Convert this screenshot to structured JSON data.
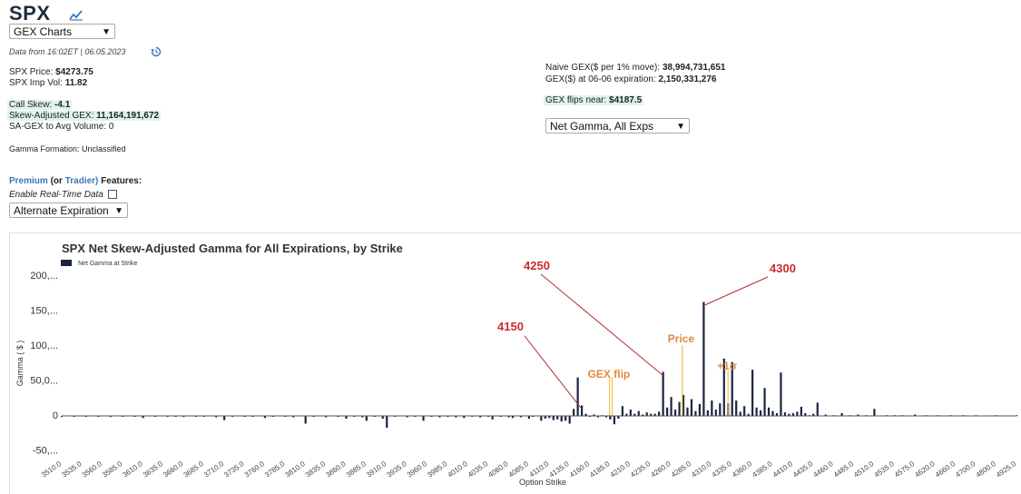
{
  "header": {
    "ticker": "SPX",
    "chart_selector": "GEX Charts",
    "data_from": "Data from 16:02ET | 06.05.2023"
  },
  "stats_left": {
    "price_label": "SPX Price:",
    "price_value": "$4273.75",
    "impvol_label": "SPX Imp Vol:",
    "impvol_value": "11.82",
    "callskew_label": "Call Skew:",
    "callskew_value": "-4.1",
    "sagex_label": "Skew-Adjusted GEX:",
    "sagex_value": "11,164,191,672",
    "sagex_avg_label": "SA-GEX to Avg Volume:",
    "sagex_avg_value": "0",
    "formation_label": "Gamma Formation:",
    "formation_value": "Unclassified"
  },
  "stats_right": {
    "naive_label": "Naive GEX($ per 1% move):",
    "naive_value": "38,994,731,651",
    "gex_exp_label": "GEX($) at 06-06 expiration:",
    "gex_exp_value": "2,150,331,276",
    "flips_label": "GEX flips near:",
    "flips_value": "$4187.5",
    "gamma_selector": "Net Gamma, All Exps"
  },
  "premium": {
    "premium_word": "Premium",
    "or_word": "(or",
    "trader_word": "Tradier)",
    "features_word": "Features:",
    "realtime_label": "Enable Real-Time Data",
    "alt_exp_selector": "Alternate Expiration"
  },
  "chart_data": {
    "type": "bar",
    "title": "SPX Net Skew-Adjusted Gamma for All Expirations, by Strike",
    "legend": "Net Gamma at Strike",
    "xlabel": "Option Strike",
    "ylabel": "Gamma ( $ )",
    "ylim": [
      -50,
      200
    ],
    "ytick_labels": [
      "200,...",
      "150,...",
      "100,...",
      "50,0...",
      "0",
      "-50,..."
    ],
    "ytick_values": [
      200,
      150,
      100,
      50,
      0,
      -50
    ],
    "xtick_labels": [
      "3510.0",
      "3535.0",
      "3560.0",
      "3585.0",
      "3610.0",
      "3635.0",
      "3660.0",
      "3685.0",
      "3710.0",
      "3735.0",
      "3760.0",
      "3785.0",
      "3810.0",
      "3835.0",
      "3860.0",
      "3885.0",
      "3910.0",
      "3935.0",
      "3960.0",
      "3985.0",
      "4010.0",
      "4035.0",
      "4060.0",
      "4085.0",
      "4110.0",
      "4135.0",
      "4160.0",
      "4185.0",
      "4210.0",
      "4235.0",
      "4260.0",
      "4285.0",
      "4310.0",
      "4335.0",
      "4360.0",
      "4385.0",
      "4410.0",
      "4435.0",
      "4460.0",
      "4485.0",
      "4510.0",
      "4535.0",
      "4575.0",
      "4620.0",
      "4660.0",
      "4700.0",
      "4800.0",
      "4925.0"
    ],
    "bar_color": "#1b2440",
    "bars": [
      [
        3510,
        -1
      ],
      [
        3525,
        -0.5
      ],
      [
        3540,
        -1
      ],
      [
        3555,
        -0.5
      ],
      [
        3570,
        -1.5
      ],
      [
        3585,
        -0.5
      ],
      [
        3600,
        -1
      ],
      [
        3610,
        -3
      ],
      [
        3625,
        -0.5
      ],
      [
        3640,
        -1
      ],
      [
        3650,
        -1
      ],
      [
        3660,
        -1.5
      ],
      [
        3675,
        -0.5
      ],
      [
        3685,
        -1
      ],
      [
        3700,
        -2
      ],
      [
        3710,
        -6
      ],
      [
        3720,
        -1
      ],
      [
        3735,
        -1
      ],
      [
        3745,
        -0.5
      ],
      [
        3760,
        -3
      ],
      [
        3770,
        -1
      ],
      [
        3785,
        -0.5
      ],
      [
        3795,
        -2
      ],
      [
        3810,
        -11
      ],
      [
        3820,
        -1
      ],
      [
        3835,
        -2
      ],
      [
        3850,
        -1
      ],
      [
        3860,
        -4
      ],
      [
        3870,
        -1
      ],
      [
        3880,
        -2
      ],
      [
        3885,
        -7
      ],
      [
        3895,
        -1
      ],
      [
        3905,
        -4
      ],
      [
        3910,
        -17
      ],
      [
        3920,
        -1
      ],
      [
        3935,
        -2
      ],
      [
        3945,
        -1
      ],
      [
        3955,
        -7
      ],
      [
        3965,
        -1
      ],
      [
        3975,
        -2
      ],
      [
        3985,
        -1
      ],
      [
        3995,
        -2
      ],
      [
        4005,
        -3
      ],
      [
        4015,
        -1
      ],
      [
        4025,
        -2
      ],
      [
        4035,
        -1
      ],
      [
        4040,
        -5
      ],
      [
        4050,
        -1
      ],
      [
        4060,
        -2
      ],
      [
        4065,
        -3
      ],
      [
        4075,
        -2
      ],
      [
        4085,
        -4
      ],
      [
        4090,
        -1
      ],
      [
        4100,
        -7
      ],
      [
        4105,
        -4
      ],
      [
        4110,
        -3
      ],
      [
        4115,
        -6
      ],
      [
        4120,
        -5
      ],
      [
        4125,
        -8
      ],
      [
        4130,
        -7
      ],
      [
        4135,
        -11
      ],
      [
        4140,
        10
      ],
      [
        4145,
        55
      ],
      [
        4150,
        15
      ],
      [
        4155,
        3
      ],
      [
        4160,
        -1
      ],
      [
        4165,
        2
      ],
      [
        4170,
        -2
      ],
      [
        4175,
        1
      ],
      [
        4180,
        -2
      ],
      [
        4185,
        -5
      ],
      [
        4190,
        -12
      ],
      [
        4195,
        -4
      ],
      [
        4200,
        14
      ],
      [
        4205,
        3
      ],
      [
        4210,
        9
      ],
      [
        4215,
        3
      ],
      [
        4220,
        7
      ],
      [
        4225,
        2
      ],
      [
        4230,
        5
      ],
      [
        4235,
        3
      ],
      [
        4240,
        3
      ],
      [
        4245,
        6
      ],
      [
        4250,
        63
      ],
      [
        4255,
        12
      ],
      [
        4260,
        27
      ],
      [
        4265,
        9
      ],
      [
        4270,
        20
      ],
      [
        4275,
        30
      ],
      [
        4280,
        12
      ],
      [
        4285,
        24
      ],
      [
        4290,
        7
      ],
      [
        4295,
        17
      ],
      [
        4300,
        163
      ],
      [
        4305,
        8
      ],
      [
        4310,
        22
      ],
      [
        4315,
        9
      ],
      [
        4320,
        18
      ],
      [
        4325,
        82
      ],
      [
        4330,
        18
      ],
      [
        4335,
        77
      ],
      [
        4340,
        22
      ],
      [
        4345,
        6
      ],
      [
        4350,
        14
      ],
      [
        4355,
        3
      ],
      [
        4360,
        66
      ],
      [
        4365,
        12
      ],
      [
        4370,
        8
      ],
      [
        4375,
        40
      ],
      [
        4380,
        12
      ],
      [
        4385,
        7
      ],
      [
        4390,
        4
      ],
      [
        4395,
        62
      ],
      [
        4400,
        5
      ],
      [
        4405,
        3
      ],
      [
        4410,
        4
      ],
      [
        4415,
        6
      ],
      [
        4420,
        13
      ],
      [
        4425,
        4
      ],
      [
        4430,
        1
      ],
      [
        4435,
        3
      ],
      [
        4440,
        19
      ],
      [
        4450,
        2
      ],
      [
        4460,
        1
      ],
      [
        4470,
        4
      ],
      [
        4480,
        1
      ],
      [
        4490,
        2
      ],
      [
        4500,
        1
      ],
      [
        4510,
        10
      ],
      [
        4525,
        1
      ],
      [
        4535,
        1
      ],
      [
        4550,
        1
      ],
      [
        4575,
        2
      ],
      [
        4600,
        1
      ],
      [
        4625,
        1
      ],
      [
        4650,
        1
      ],
      [
        4675,
        1
      ],
      [
        4700,
        1
      ],
      [
        4800,
        1
      ],
      [
        4925,
        1
      ]
    ],
    "markers": [
      {
        "label": "GEX flip",
        "strike": 4187.5,
        "color": "#f0c24b"
      },
      {
        "label": "Price",
        "strike": 4273.75,
        "color": "#f0c24b"
      },
      {
        "label": "+1σ",
        "strike": 4330,
        "color": "#f0c24b"
      }
    ],
    "annotations": [
      {
        "label": "4150",
        "strike": 4150
      },
      {
        "label": "4250",
        "strike": 4250
      },
      {
        "label": "4300",
        "strike": 4300
      }
    ]
  }
}
